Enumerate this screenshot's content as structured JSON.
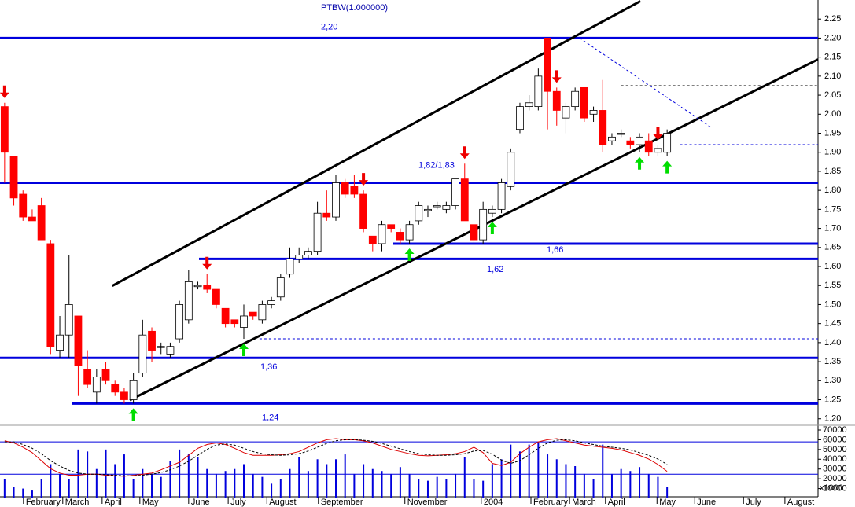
{
  "chart_data": {
    "type": "candlestick",
    "title": "PTBW(1.000000)",
    "x": [
      0,
      1,
      2,
      3,
      4,
      5,
      6,
      7,
      8,
      9,
      10,
      11,
      12,
      13,
      14,
      15,
      16,
      17,
      18,
      19,
      20,
      21,
      22,
      23,
      24,
      25,
      26,
      27,
      28,
      29,
      30,
      31,
      32,
      33,
      34,
      35,
      36,
      37,
      38,
      39,
      40,
      41,
      42,
      43,
      44,
      45,
      46,
      47,
      48,
      49,
      50,
      51,
      52,
      53,
      54,
      55,
      56,
      57,
      58,
      59,
      60,
      61,
      62,
      63,
      64,
      65,
      66,
      67,
      68,
      69,
      70,
      71,
      72
    ],
    "xlim": [
      -0.5,
      88.4
    ],
    "xticks": [
      {
        "value": 2.05,
        "label": "February"
      },
      {
        "value": 6.32,
        "label": "March"
      },
      {
        "value": 10.6,
        "label": "April"
      },
      {
        "value": 14.7,
        "label": "May"
      },
      {
        "value": 20,
        "label": "June"
      },
      {
        "value": 24.3,
        "label": "July"
      },
      {
        "value": 28.5,
        "label": "August"
      },
      {
        "value": 34.1,
        "label": "September"
      },
      {
        "value": 43.5,
        "label": "November"
      },
      {
        "value": 51.8,
        "label": "2004"
      },
      {
        "value": 57.2,
        "label": "February"
      },
      {
        "value": 61.4,
        "label": "March"
      },
      {
        "value": 65.3,
        "label": "April"
      },
      {
        "value": 70.9,
        "label": "May"
      },
      {
        "value": 75,
        "label": "June"
      },
      {
        "value": 80.3,
        "label": "July"
      },
      {
        "value": 84.8,
        "label": "August"
      }
    ],
    "open": [
      2.02,
      1.89,
      1.79,
      1.73,
      1.76,
      1.66,
      1.38,
      1.42,
      1.47,
      1.33,
      1.27,
      1.33,
      1.29,
      1.27,
      1.25,
      1.32,
      1.43,
      1.39,
      1.37,
      1.41,
      1.46,
      1.55,
      1.55,
      1.54,
      1.49,
      1.46,
      1.44,
      1.48,
      1.46,
      1.5,
      1.52,
      1.58,
      1.62,
      1.63,
      1.64,
      1.74,
      1.73,
      1.82,
      1.81,
      1.79,
      1.68,
      1.66,
      1.71,
      1.69,
      1.67,
      1.72,
      1.75,
      1.76,
      1.75,
      1.76,
      1.83,
      1.71,
      1.67,
      1.74,
      1.75,
      1.81,
      1.96,
      2.02,
      2.02,
      2.2,
      2.06,
      1.99,
      2.02,
      2.07,
      2.0,
      2.01,
      1.93,
      1.95,
      1.93,
      1.92,
      1.93,
      1.9,
      1.9
    ],
    "high": [
      2.03,
      1.89,
      1.8,
      1.75,
      1.78,
      1.67,
      1.47,
      1.63,
      1.47,
      1.38,
      1.33,
      1.35,
      1.3,
      1.28,
      1.32,
      1.46,
      1.44,
      1.4,
      1.4,
      1.51,
      1.59,
      1.56,
      1.58,
      1.54,
      1.49,
      1.46,
      1.5,
      1.48,
      1.51,
      1.52,
      1.58,
      1.65,
      1.65,
      1.65,
      1.77,
      1.8,
      1.84,
      1.83,
      1.84,
      1.8,
      1.68,
      1.72,
      1.71,
      1.7,
      1.72,
      1.77,
      1.76,
      1.77,
      1.77,
      1.83,
      1.87,
      1.71,
      1.77,
      1.76,
      1.83,
      1.91,
      2.03,
      2.05,
      2.12,
      2.2,
      2.07,
      2.03,
      2.07,
      2.07,
      2.02,
      2.09,
      1.95,
      1.96,
      1.94,
      1.95,
      1.95,
      1.92,
      1.96
    ],
    "low": [
      1.82,
      1.76,
      1.72,
      1.72,
      1.67,
      1.37,
      1.36,
      1.36,
      1.26,
      1.28,
      1.24,
      1.29,
      1.26,
      1.24,
      1.24,
      1.31,
      1.35,
      1.37,
      1.36,
      1.4,
      1.45,
      1.54,
      1.53,
      1.49,
      1.44,
      1.44,
      1.41,
      1.46,
      1.45,
      1.49,
      1.51,
      1.57,
      1.61,
      1.62,
      1.63,
      1.72,
      1.72,
      1.78,
      1.78,
      1.69,
      1.64,
      1.64,
      1.69,
      1.66,
      1.66,
      1.71,
      1.73,
      1.75,
      1.74,
      1.75,
      1.72,
      1.66,
      1.66,
      1.73,
      1.74,
      1.8,
      1.95,
      2.01,
      2.01,
      1.96,
      1.97,
      1.95,
      2.01,
      1.98,
      1.98,
      1.9,
      1.92,
      1.94,
      1.91,
      1.9,
      1.89,
      1.89,
      1.89
    ],
    "close": [
      1.9,
      1.78,
      1.73,
      1.72,
      1.67,
      1.39,
      1.42,
      1.5,
      1.34,
      1.29,
      1.31,
      1.3,
      1.27,
      1.25,
      1.3,
      1.42,
      1.38,
      1.39,
      1.39,
      1.5,
      1.56,
      1.55,
      1.54,
      1.5,
      1.45,
      1.45,
      1.47,
      1.47,
      1.5,
      1.51,
      1.57,
      1.62,
      1.63,
      1.64,
      1.74,
      1.73,
      1.82,
      1.79,
      1.79,
      1.7,
      1.66,
      1.71,
      1.7,
      1.67,
      1.71,
      1.76,
      1.75,
      1.76,
      1.76,
      1.83,
      1.72,
      1.67,
      1.75,
      1.75,
      1.82,
      1.9,
      2.02,
      2.03,
      2.1,
      2.06,
      2.01,
      2.02,
      2.06,
      1.99,
      2.01,
      1.92,
      1.94,
      1.95,
      1.92,
      1.94,
      1.9,
      1.91,
      1.95
    ],
    "up_color": "#ffffff",
    "down_color": "#ff0000",
    "ylim": [
      1.185,
      2.3
    ],
    "yticks": [
      {
        "value": 1.2,
        "label": "1.20"
      },
      1.25,
      {
        "value": 1.3,
        "label": "1.30"
      },
      1.35,
      {
        "value": 1.4,
        "label": "1.40"
      },
      1.45,
      {
        "value": 1.5,
        "label": "1.50"
      },
      1.55,
      {
        "value": 1.6,
        "label": "1.60"
      },
      1.65,
      {
        "value": 1.7,
        "label": "1.70"
      },
      1.75,
      {
        "value": 1.8,
        "label": "1.80"
      },
      1.85,
      {
        "value": 1.9,
        "label": "1.90"
      },
      1.95,
      {
        "value": 2.0,
        "label": "2.00"
      },
      2.05,
      {
        "value": 2.1,
        "label": "2.10"
      },
      2.15,
      {
        "value": 2.2,
        "label": "2.20"
      },
      2.25
    ],
    "levels": [
      {
        "value": 2.2,
        "label": "2,20",
        "color": "#0000dd"
      },
      {
        "value": 1.82,
        "label": "1,82/1,83",
        "color": "#0000dd"
      },
      {
        "value": 1.66,
        "label": "1,66",
        "color": "#0000dd"
      },
      {
        "value": 1.62,
        "label": "1,62",
        "color": "#0000dd"
      },
      {
        "value": 1.36,
        "label": "1,36",
        "color": "#0000dd"
      },
      {
        "value": 1.24,
        "label": "1,24",
        "color": "#0000dd"
      }
    ],
    "trend_lines": [
      {
        "x": [
          11.7,
          69.1
        ],
        "y": [
          1.549,
          2.297
        ],
        "color": "#000000"
      },
      {
        "x": [
          13.6,
          88.4
        ],
        "y": [
          1.249,
          2.144
        ],
        "color": "#000000"
      }
    ],
    "guide_lines": [
      {
        "x": [
          62.5,
          76.8
        ],
        "y": [
          2.2,
          1.965
        ],
        "color": "#0000dd"
      },
      {
        "x": [
          67,
          88.4
        ],
        "y": [
          2.075,
          2.075
        ],
        "color": "#000000"
      },
      {
        "x": [
          27.7,
          88.4
        ],
        "y": [
          1.41,
          1.41
        ],
        "color": "#0000dd"
      },
      {
        "x": [
          73.4,
          88.4
        ],
        "y": [
          1.92,
          1.92
        ],
        "color": "#0000dd"
      }
    ],
    "sell_arrows": [
      0,
      22,
      39,
      50,
      60,
      71
    ],
    "buy_arrows": [
      14,
      26,
      44,
      53,
      69,
      72
    ],
    "volume": [
      20000,
      12000,
      10000,
      8000,
      20000,
      35000,
      25000,
      20000,
      50000,
      48000,
      30000,
      50000,
      35000,
      45000,
      20000,
      30000,
      25000,
      22000,
      38000,
      50000,
      45000,
      42000,
      30000,
      25000,
      28000,
      30000,
      35000,
      25000,
      22000,
      15000,
      20000,
      30000,
      42000,
      28000,
      40000,
      35000,
      40000,
      45000,
      25000,
      35000,
      30000,
      28000,
      25000,
      32000,
      25000,
      20000,
      18000,
      22000,
      20000,
      25000,
      42000,
      20000,
      18000,
      35000,
      40000,
      55000,
      48000,
      55000,
      58000,
      45000,
      40000,
      35000,
      33000,
      25000,
      20000,
      55000,
      25000,
      30000,
      28000,
      32000,
      25000,
      22000,
      12000
    ],
    "volume_color": "#0000dd",
    "volume_ylim": [
      0,
      70000
    ],
    "volume_yticks": [
      10000,
      20000,
      30000,
      40000,
      50000,
      60000,
      70000
    ],
    "volume_unit": "x1000",
    "y2lim": [
      -25,
      105
    ],
    "stoch_levels": [
      80,
      20
    ],
    "series": [
      {
        "axis": "y2",
        "color": "#dd0000",
        "dash": false,
        "values": [
          82,
          78,
          70,
          60,
          45,
          30,
          22,
          18,
          18,
          20,
          20,
          18,
          17,
          16,
          18,
          20,
          22,
          28,
          35,
          42,
          55,
          68,
          75,
          78,
          75,
          68,
          60,
          55,
          55,
          55,
          56,
          58,
          62,
          70,
          78,
          84,
          86,
          84,
          84,
          82,
          78,
          72,
          66,
          62,
          58,
          55,
          54,
          55,
          56,
          58,
          62,
          70,
          60,
          40,
          36,
          42,
          58,
          70,
          80,
          84,
          86,
          82,
          78,
          74,
          72,
          70,
          68,
          65,
          60,
          55,
          48,
          38,
          25
        ]
      },
      {
        "axis": "y2",
        "color": "#000000",
        "dash": true,
        "values": [
          80,
          80,
          75,
          68,
          58,
          45,
          35,
          27,
          22,
          20,
          20,
          19,
          18,
          17,
          17,
          18,
          20,
          23,
          28,
          35,
          44,
          55,
          66,
          74,
          76,
          74,
          68,
          62,
          58,
          56,
          55,
          56,
          58,
          63,
          70,
          77,
          82,
          84,
          84,
          83,
          81,
          77,
          72,
          67,
          62,
          58,
          56,
          55,
          55,
          56,
          58,
          63,
          64,
          57,
          46,
          40,
          45,
          56,
          68,
          78,
          83,
          84,
          82,
          78,
          75,
          72,
          70,
          68,
          65,
          60,
          55,
          48,
          38
        ]
      }
    ]
  }
}
